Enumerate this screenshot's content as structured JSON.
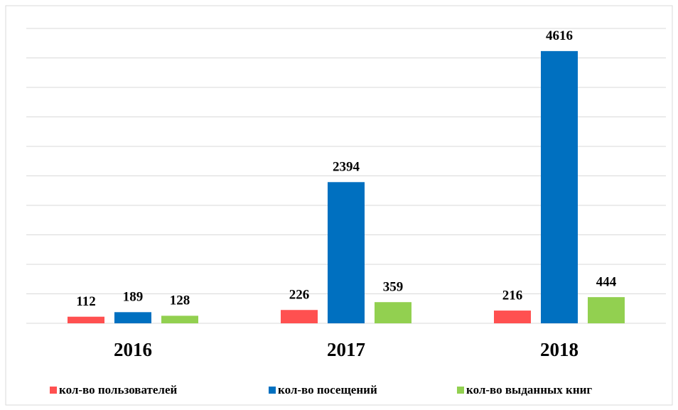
{
  "chart_data": {
    "type": "bar",
    "categories": [
      "2016",
      "2017",
      "2018"
    ],
    "series": [
      {
        "name": "кол-во пользователей",
        "color": "#ff5050",
        "values": [
          112,
          226,
          216
        ]
      },
      {
        "name": "кол-во посещений",
        "color": "#0070c0",
        "values": [
          189,
          2394,
          4616
        ]
      },
      {
        "name": "кол-во выданных книг",
        "color": "#92d050",
        "values": [
          128,
          359,
          444
        ]
      }
    ],
    "ylim": [
      0,
      5000
    ],
    "yticks": [
      0,
      500,
      1000,
      1500,
      2000,
      2500,
      3000,
      3500,
      4000,
      4500,
      5000
    ],
    "grid": true,
    "legend": "bottom"
  }
}
